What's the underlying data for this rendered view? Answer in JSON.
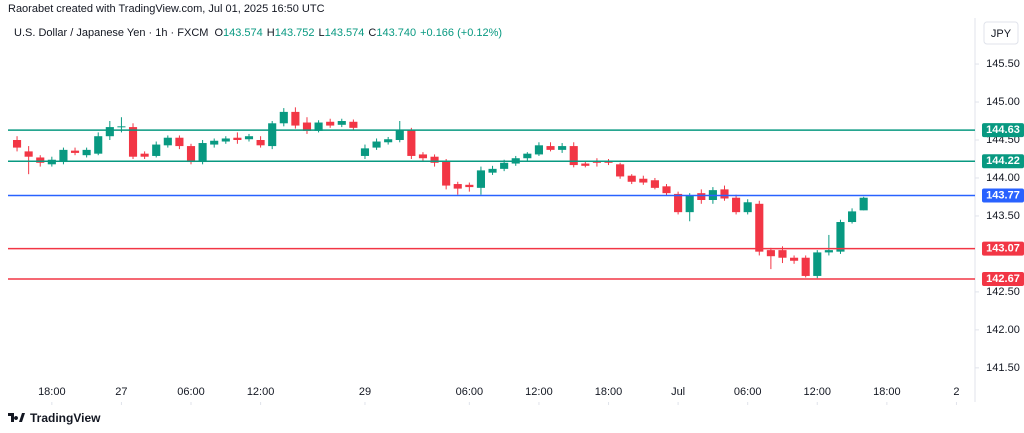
{
  "header": {
    "credit": "Raorabet created with TradingView.com, Jul 01, 2025 16:50 UTC",
    "symbol": "U.S. Dollar / Japanese Yen · 1h · FXCM",
    "legend": [
      {
        "label": "O",
        "value": "143.574"
      },
      {
        "label": "H",
        "value": "143.752"
      },
      {
        "label": "L",
        "value": "143.574"
      },
      {
        "label": "C",
        "value": "143.740"
      }
    ],
    "change": "+0.166 (+0.12%)",
    "currency": "JPY"
  },
  "footer": {
    "logo_text": "TradingView"
  },
  "chart_data": {
    "type": "candlestick",
    "up_color": "#089981",
    "down_color": "#f23645",
    "x": [
      0,
      1,
      2,
      3,
      4,
      5,
      6,
      7,
      8,
      9,
      10,
      11,
      12,
      13,
      14,
      15,
      16,
      17,
      18,
      19,
      20,
      21,
      22,
      23,
      24,
      25,
      26,
      27,
      28,
      29,
      30,
      31,
      32,
      33,
      34,
      35,
      36,
      37,
      38,
      39,
      40,
      41,
      42,
      43,
      44,
      45,
      46,
      47,
      48,
      49,
      50,
      51,
      52,
      53,
      54,
      55,
      56,
      57,
      58,
      59,
      60,
      61,
      62,
      63,
      64,
      65,
      66,
      67,
      68,
      69,
      70,
      71,
      72,
      73
    ],
    "open": [
      144.5,
      144.35,
      144.27,
      144.18,
      144.21,
      144.36,
      144.3,
      144.32,
      144.55,
      144.67,
      144.67,
      144.32,
      144.29,
      144.43,
      144.53,
      144.42,
      144.21,
      144.44,
      144.48,
      144.53,
      144.51,
      144.5,
      144.42,
      144.72,
      144.87,
      144.73,
      144.62,
      144.74,
      144.7,
      144.74,
      144.29,
      144.4,
      144.47,
      144.5,
      144.63,
      144.31,
      144.28,
      144.22,
      143.92,
      143.91,
      143.87,
      144.07,
      144.12,
      144.19,
      144.26,
      144.31,
      144.42,
      144.37,
      144.42,
      144.19,
      144.23,
      144.23,
      144.18,
      144.03,
      143.99,
      143.97,
      143.89,
      143.79,
      143.55,
      143.8,
      143.71,
      143.85,
      143.74,
      143.55,
      143.66,
      143.05,
      143.05,
      142.95,
      142.95,
      142.71,
      143.02,
      143.03,
      143.42,
      143.574
    ],
    "high": [
      144.55,
      144.42,
      144.3,
      144.28,
      144.4,
      144.4,
      144.4,
      144.6,
      144.75,
      144.8,
      144.72,
      144.35,
      144.48,
      144.56,
      144.56,
      144.45,
      144.5,
      144.52,
      144.55,
      144.6,
      144.58,
      144.55,
      144.75,
      144.92,
      144.93,
      144.8,
      144.76,
      144.78,
      144.78,
      144.77,
      144.44,
      144.52,
      144.54,
      144.75,
      144.66,
      144.34,
      144.31,
      144.25,
      143.95,
      143.94,
      144.15,
      144.16,
      144.24,
      144.29,
      144.34,
      144.47,
      144.47,
      144.46,
      144.47,
      144.23,
      144.26,
      144.25,
      144.2,
      144.05,
      144.03,
      144.0,
      143.92,
      143.82,
      143.8,
      143.85,
      143.88,
      143.9,
      143.78,
      143.72,
      143.7,
      143.08,
      143.1,
      142.98,
      142.98,
      143.05,
      143.25,
      143.45,
      143.6,
      143.752
    ],
    "low": [
      144.35,
      144.05,
      144.15,
      144.15,
      144.18,
      144.3,
      144.27,
      144.3,
      144.5,
      144.6,
      144.25,
      144.25,
      144.27,
      144.4,
      144.38,
      144.18,
      144.18,
      144.4,
      144.45,
      144.45,
      144.48,
      144.4,
      144.38,
      144.68,
      144.65,
      144.58,
      144.6,
      144.66,
      144.67,
      144.63,
      144.25,
      144.37,
      144.44,
      144.47,
      144.25,
      144.22,
      144.15,
      143.85,
      143.78,
      143.82,
      143.78,
      144.04,
      144.09,
      144.16,
      144.22,
      144.29,
      144.35,
      144.33,
      144.14,
      144.14,
      144.15,
      144.17,
      143.99,
      143.92,
      143.91,
      143.85,
      143.77,
      143.52,
      143.43,
      143.66,
      143.66,
      143.7,
      143.52,
      143.52,
      142.98,
      142.8,
      142.88,
      142.87,
      142.69,
      142.68,
      142.98,
      143.0,
      143.4,
      143.574
    ],
    "close": [
      144.4,
      144.28,
      144.2,
      144.24,
      144.37,
      144.33,
      144.37,
      144.55,
      144.67,
      144.68,
      144.28,
      144.28,
      144.44,
      144.53,
      144.42,
      144.21,
      144.46,
      144.49,
      144.52,
      144.5,
      144.55,
      144.43,
      144.72,
      144.87,
      144.69,
      144.62,
      144.73,
      144.69,
      144.75,
      144.66,
      144.39,
      144.48,
      144.51,
      144.63,
      144.29,
      144.26,
      144.2,
      143.9,
      143.86,
      143.88,
      144.1,
      144.12,
      144.2,
      144.26,
      144.32,
      144.43,
      144.37,
      144.42,
      144.17,
      144.16,
      144.2,
      144.2,
      144.02,
      143.95,
      143.94,
      143.87,
      143.8,
      143.55,
      143.77,
      143.71,
      143.84,
      143.73,
      143.55,
      143.68,
      143.03,
      142.97,
      142.95,
      142.91,
      142.71,
      143.02,
      143.05,
      143.42,
      143.56,
      143.74
    ],
    "xlim": [
      -0.78,
      82.6
    ],
    "xticks": [
      {
        "value": 3,
        "label": "18:00"
      },
      {
        "value": 9,
        "label": "27"
      },
      {
        "value": 15,
        "label": "06:00"
      },
      {
        "value": 21,
        "label": "12:00"
      },
      {
        "value": 30,
        "label": "29"
      },
      {
        "value": 39,
        "label": "06:00"
      },
      {
        "value": 45,
        "label": "12:00"
      },
      {
        "value": 51,
        "label": "18:00"
      },
      {
        "value": 57,
        "label": "Jul"
      },
      {
        "value": 63,
        "label": "06:00"
      },
      {
        "value": 69,
        "label": "12:00"
      },
      {
        "value": 75,
        "label": "18:00"
      },
      {
        "value": 81,
        "label": "2"
      }
    ],
    "ylim": [
      141.34,
      146.08
    ],
    "yticks": [
      {
        "value": 145.5,
        "label": "145.50"
      },
      {
        "value": 145,
        "label": "145.00"
      },
      {
        "value": 144.5,
        "label": "144.50"
      },
      {
        "value": 144,
        "label": "144.00"
      },
      {
        "value": 143.5,
        "label": "143.50"
      },
      {
        "value": 142.5,
        "label": "142.50"
      },
      {
        "value": 142,
        "label": "142.00"
      },
      {
        "value": 141.5,
        "label": "141.50"
      }
    ],
    "levels": [
      {
        "value": 144.63,
        "color": "#089981"
      },
      {
        "value": 144.22,
        "color": "#089981"
      },
      {
        "value": 143.77,
        "color": "#2962ff"
      },
      {
        "value": 143.07,
        "color": "#f23645"
      },
      {
        "value": 142.67,
        "color": "#f23645"
      }
    ]
  }
}
